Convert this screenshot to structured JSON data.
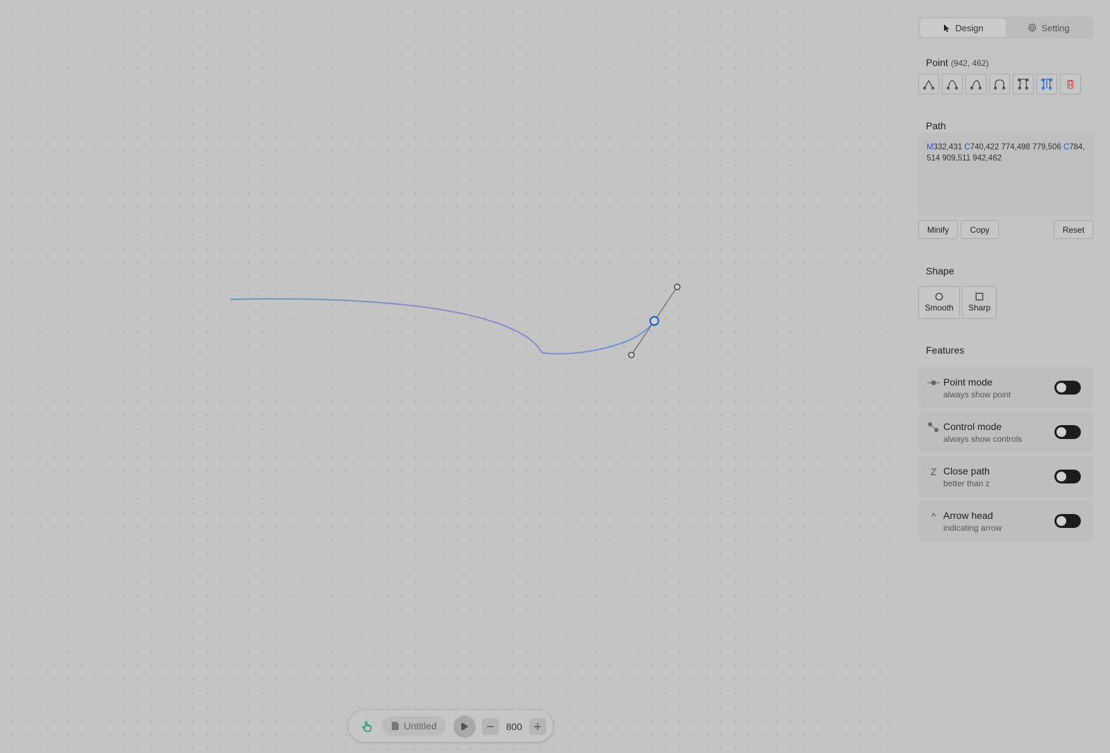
{
  "tabs": [
    {
      "label": "Design",
      "icon": "cursor-icon",
      "active": true
    },
    {
      "label": "Setting",
      "icon": "gear-icon",
      "active": false
    }
  ],
  "point": {
    "title": "Point",
    "coords": "(942, 462)",
    "tools": [
      "mirror-none-icon",
      "mirror-angle-icon",
      "mirror-both-icon",
      "curve-icon",
      "controls-icon",
      "link-controls-icon",
      "trash-icon"
    ]
  },
  "path": {
    "title": "Path",
    "segments": [
      {
        "cmd": "M",
        "args": "332,431 "
      },
      {
        "cmd": "C",
        "args": "740,422 774,498 779,506 "
      },
      {
        "cmd": "C",
        "args": "784,514 909,511 942,462"
      }
    ],
    "buttons": {
      "minify": "Minify",
      "copy": "Copy",
      "reset": "Reset"
    }
  },
  "shape": {
    "title": "Shape",
    "options": [
      {
        "label": "Smooth",
        "icon": "circle-icon"
      },
      {
        "label": "Sharp",
        "icon": "square-icon"
      }
    ]
  },
  "features": {
    "title": "Features",
    "items": [
      {
        "title": "Point mode",
        "sub": "always show point",
        "icon": "point-mode-icon",
        "glyph": "",
        "on": false
      },
      {
        "title": "Control mode",
        "sub": "always show controls",
        "icon": "control-mode-icon",
        "glyph": "",
        "on": false
      },
      {
        "title": "Close path",
        "sub": "better than z",
        "icon": "close-path-icon",
        "glyph": "Z",
        "on": false
      },
      {
        "title": "Arrow head",
        "sub": "indicating arrow",
        "icon": "arrow-head-icon",
        "glyph": "^",
        "on": false
      }
    ]
  },
  "bottom": {
    "file_name": "Untitled",
    "zoom": "800"
  },
  "colors": {
    "accent": "#1a56d6",
    "path_stroke_start": "#6a9ab0",
    "path_stroke_end": "#7a8fd0",
    "hand_icon": "#1a9a6a",
    "delete": "#d43a3a"
  }
}
